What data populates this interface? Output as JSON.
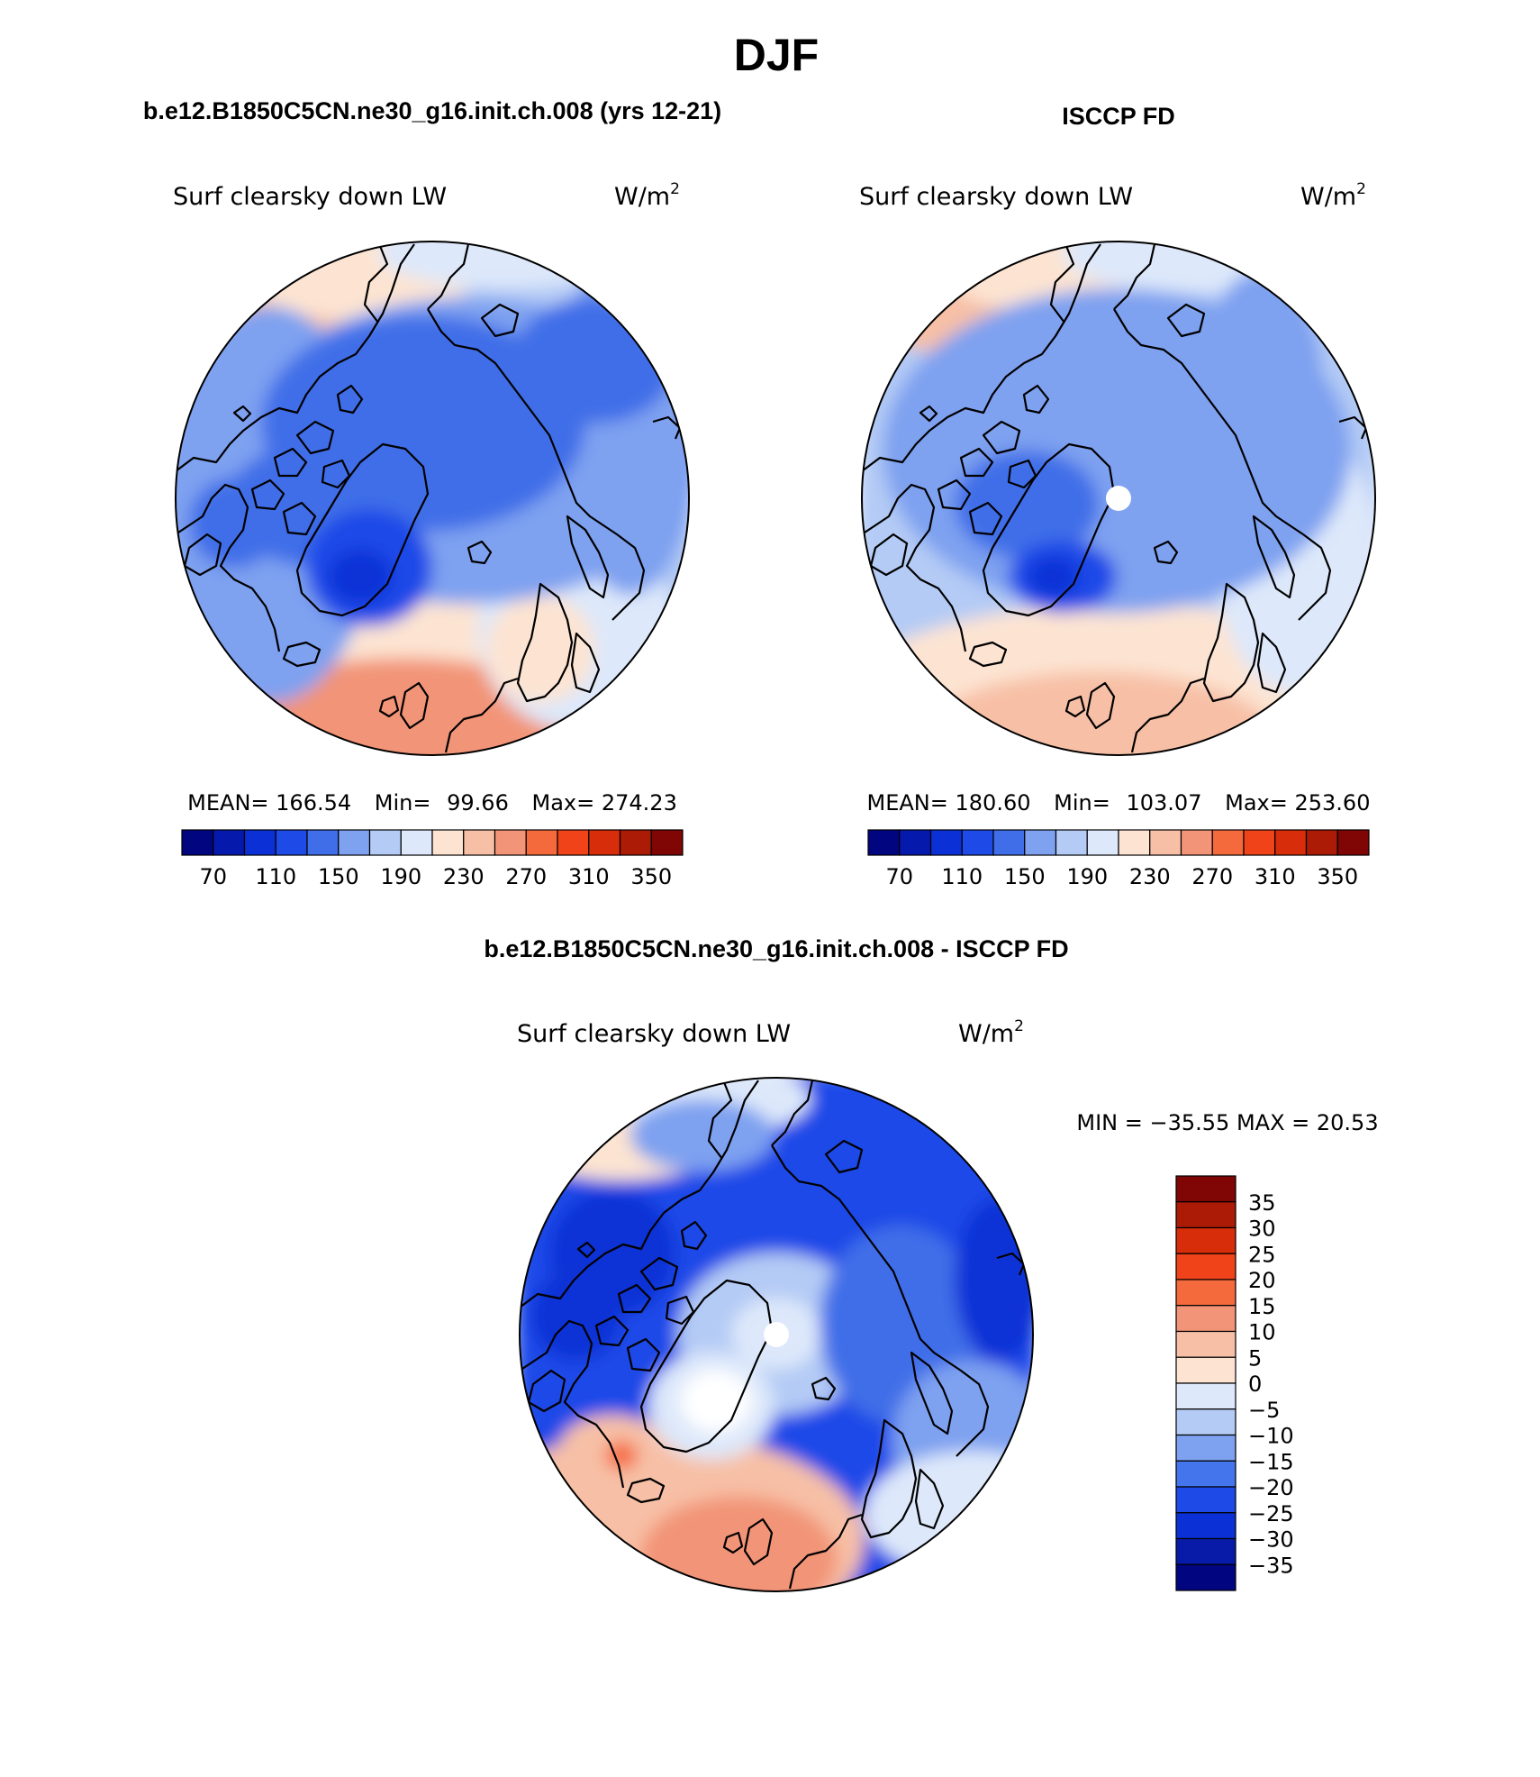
{
  "page": {
    "title": "DJF",
    "diff_title": "b.e12.B1850C5CN.ne30_g16.init.ch.008 - ISCCP FD"
  },
  "colors": {
    "main_scale": [
      "#020580",
      "#0519ad",
      "#0a30d6",
      "#1e4ae8",
      "#3f6ee8",
      "#7ea1f0",
      "#b4cbf5",
      "#dde8fa",
      "#fde4d2",
      "#f7c0a6",
      "#f29477",
      "#f56a3d",
      "#f0431a",
      "#d72d0a",
      "#ab1b06",
      "#800505"
    ],
    "diff_scale": [
      "#020580",
      "#071aa8",
      "#0a30d6",
      "#1e4ae8",
      "#4575ec",
      "#7ea1f0",
      "#b4cbf5",
      "#dde8fa",
      "#fde4d2",
      "#f7c0a6",
      "#f29477",
      "#f56a3d",
      "#f0431a",
      "#d72d0a",
      "#ab1b06",
      "#800505"
    ]
  },
  "panels": [
    {
      "id": "model",
      "title": "b.e12.B1850C5CN.ne30_g16.init.ch.008 (yrs 12-21)",
      "variable": "Surf clearsky down LW",
      "units": "W/m",
      "units_exp": "2",
      "stats": {
        "mean_label": "MEAN=",
        "mean": "166.54",
        "min_label": "Min=",
        "min": "99.66",
        "max_label": "Max=",
        "max": "274.23"
      },
      "colorbar_ticks": [
        "70",
        "110",
        "150",
        "190",
        "230",
        "270",
        "310",
        "350"
      ]
    },
    {
      "id": "obs",
      "title": "ISCCP FD",
      "variable": "Surf clearsky down LW",
      "units": "W/m",
      "units_exp": "2",
      "stats": {
        "mean_label": "MEAN=",
        "mean": "180.60",
        "min_label": "Min=",
        "min": "103.07",
        "max_label": "Max=",
        "max": "253.60"
      },
      "colorbar_ticks": [
        "70",
        "110",
        "150",
        "190",
        "230",
        "270",
        "310",
        "350"
      ]
    },
    {
      "id": "diff",
      "variable": "Surf clearsky down LW",
      "units": "W/m",
      "units_exp": "2",
      "stats_line": "MIN = −35.55 MAX =  20.53",
      "colorbar_ticks": [
        "35",
        "30",
        "25",
        "20",
        "15",
        "10",
        "5",
        "0",
        "−5",
        "−10",
        "−15",
        "−20",
        "−25",
        "−30",
        "−35"
      ]
    }
  ]
}
